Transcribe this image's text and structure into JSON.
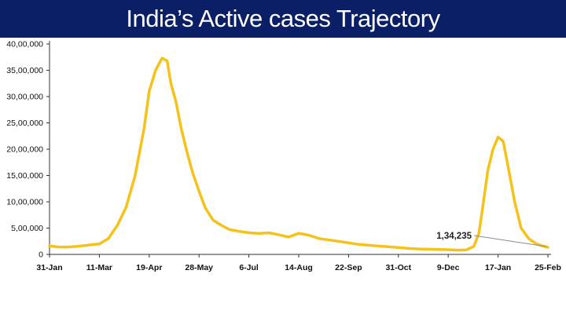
{
  "header": {
    "title": "India’s Active cases Trajectory"
  },
  "colors": {
    "title_bg": "#0b1f66",
    "line": "#f5c21b",
    "axis": "#333333",
    "annotation_line": "#8c8c8c"
  },
  "chart_data": {
    "type": "line",
    "title": "India’s Active cases Trajectory",
    "xlabel": "",
    "ylabel": "",
    "ylim": [
      0,
      4000000
    ],
    "grid": false,
    "yticks": [
      0,
      500000,
      1000000,
      1500000,
      2000000,
      2500000,
      3000000,
      3500000,
      4000000
    ],
    "ytick_labels": [
      "0",
      "5,00,000",
      "10,00,000",
      "15,00,000",
      "20,00,000",
      "25,00,000",
      "30,00,000",
      "35,00,000",
      "40,00,000"
    ],
    "xticks": [
      "31-Jan",
      "11-Mar",
      "19-Apr",
      "28-May",
      "6-Jul",
      "14-Aug",
      "22-Sep",
      "31-Oct",
      "9-Dec",
      "17-Jan",
      "25-Feb"
    ],
    "annotation": {
      "label": "1,34,235",
      "x": "25-Feb",
      "y": 134235
    },
    "series": [
      {
        "x": [
          "31-Jan",
          "7-Feb",
          "14-Feb",
          "21-Feb",
          "28-Feb",
          "7-Mar",
          "11-Mar",
          "18-Mar",
          "25-Mar",
          "1-Apr",
          "8-Apr",
          "15-Apr",
          "19-Apr",
          "24-Apr",
          "29-Apr",
          "3-May",
          "6-May",
          "10-May",
          "14-May",
          "18-May",
          "23-May",
          "28-May",
          "2-Jun",
          "8-Jun",
          "14-Jun",
          "21-Jun",
          "28-Jun",
          "6-Jul",
          "14-Jul",
          "22-Jul",
          "30-Jul",
          "6-Aug",
          "14-Aug",
          "19-Aug",
          "24-Aug",
          "30-Aug",
          "5-Sep",
          "14-Sep",
          "22-Sep",
          "30-Sep",
          "10-Oct",
          "20-Oct",
          "31-Oct",
          "10-Nov",
          "20-Nov",
          "1-Dec",
          "9-Dec",
          "17-Dec",
          "23-Dec",
          "29-Dec",
          "2-Jan",
          "5-Jan",
          "9-Jan",
          "13-Jan",
          "17-Jan",
          "21-Jan",
          "25-Jan",
          "30-Jan",
          "4-Feb",
          "10-Feb",
          "16-Feb",
          "21-Feb",
          "25-Feb"
        ],
        "values": [
          160000,
          140000,
          140000,
          150000,
          170000,
          190000,
          200000,
          300000,
          550000,
          900000,
          1500000,
          2400000,
          3100000,
          3500000,
          3730000,
          3680000,
          3250000,
          2900000,
          2400000,
          2000000,
          1550000,
          1200000,
          880000,
          650000,
          560000,
          470000,
          440000,
          410000,
          400000,
          410000,
          370000,
          330000,
          400000,
          380000,
          350000,
          300000,
          280000,
          250000,
          220000,
          190000,
          170000,
          150000,
          130000,
          110000,
          100000,
          95000,
          90000,
          80000,
          85000,
          150000,
          400000,
          900000,
          1600000,
          2000000,
          2230000,
          2150000,
          1650000,
          1000000,
          500000,
          300000,
          200000,
          160000,
          134235
        ]
      }
    ]
  }
}
